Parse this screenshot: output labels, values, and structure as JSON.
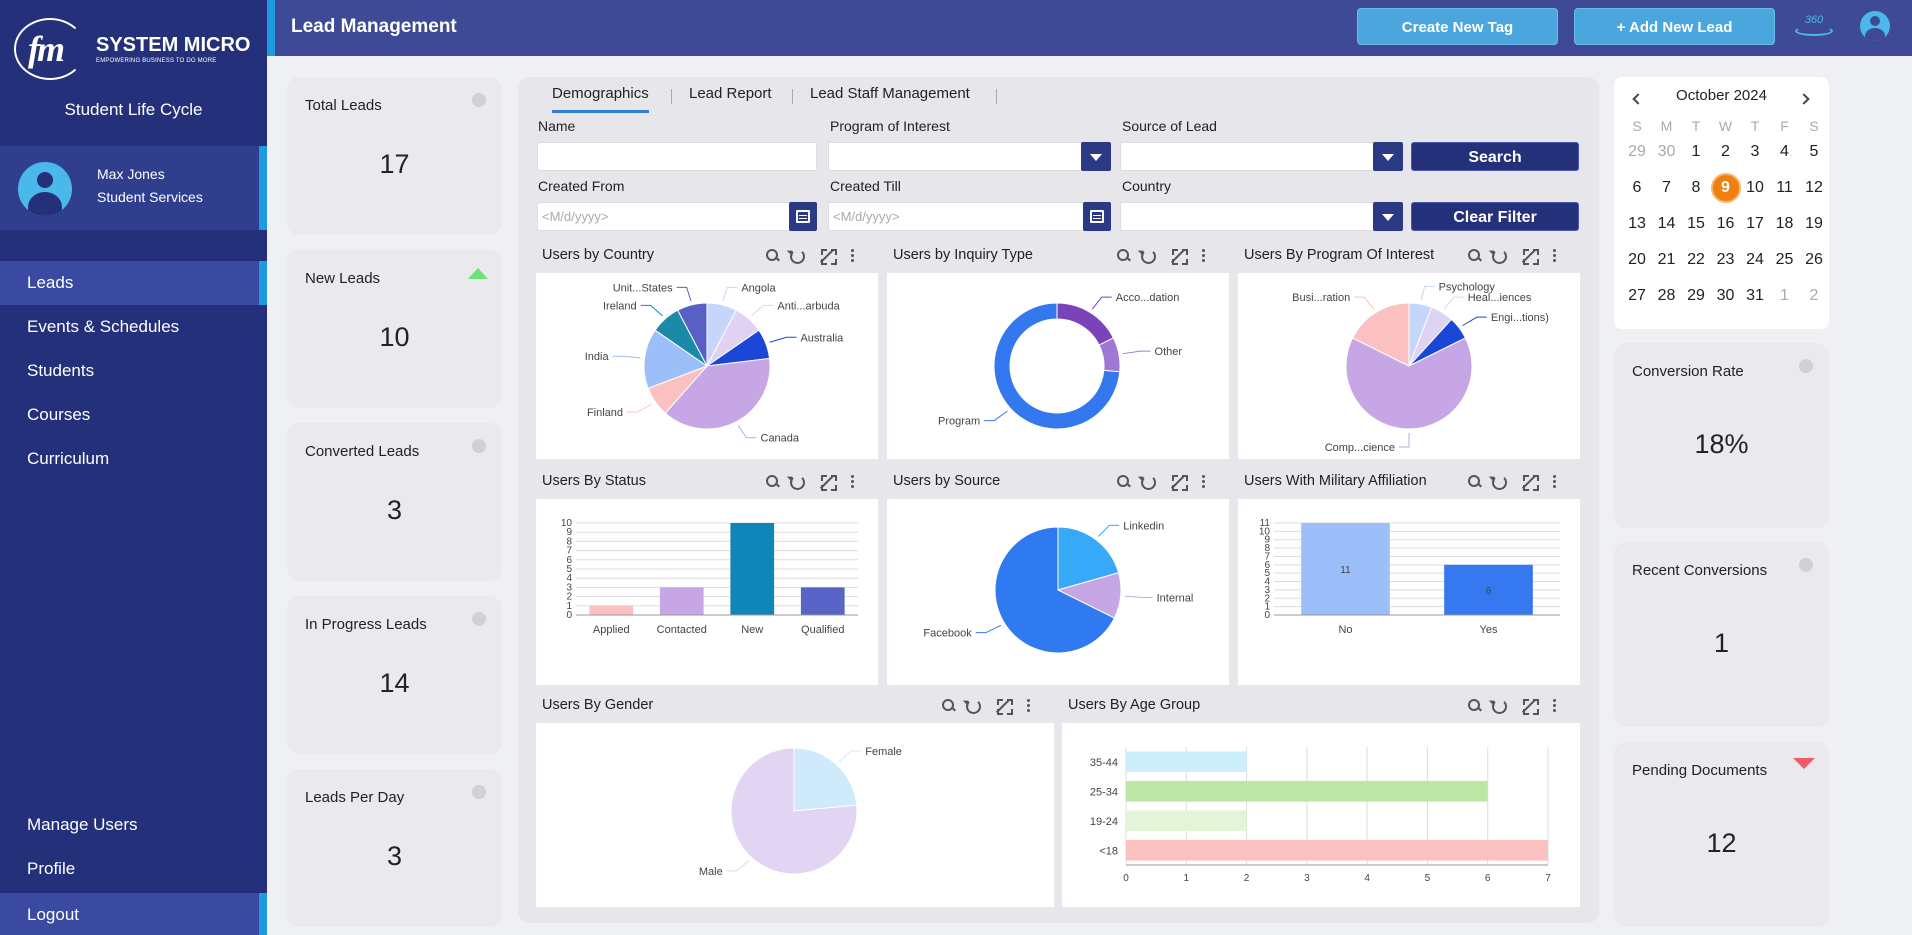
{
  "sidebar": {
    "logo": {
      "brand": "SYSTEM MICRO",
      "tagline": "EMPOWERING BUSINESS TO DO MORE",
      "mark": "fm"
    },
    "app_name": "Student Life Cycle",
    "user": {
      "name": "Max Jones",
      "role": "Student Services"
    },
    "nav": [
      "Leads",
      "Events & Schedules",
      "Students",
      "Courses",
      "Curriculum"
    ],
    "bottom_nav": [
      "Manage Users",
      "Profile"
    ],
    "logout": "Logout"
  },
  "header": {
    "title": "Lead Management",
    "create_tag": "Create New Tag",
    "add_lead": "+ Add New Lead",
    "badge_360": "360"
  },
  "stats": [
    {
      "label": "Total Leads",
      "value": "17"
    },
    {
      "label": "New Leads",
      "value": "10"
    },
    {
      "label": "Converted Leads",
      "value": "3"
    },
    {
      "label": "In Progress Leads",
      "value": "14"
    },
    {
      "label": "Leads Per Day",
      "value": "3"
    }
  ],
  "right_stats": [
    {
      "label": "Conversion Rate",
      "value": "18%"
    },
    {
      "label": "Recent Conversions",
      "value": "1"
    },
    {
      "label": "Pending Documents",
      "value": "12"
    }
  ],
  "tabs": [
    "Demographics",
    "Lead Report",
    "Lead Staff Management"
  ],
  "filters": {
    "name_label": "Name",
    "program_label": "Program of Interest",
    "source_label": "Source of Lead",
    "created_from_label": "Created From",
    "created_till_label": "Created Till",
    "country_label": "Country",
    "date_placeholder": "<M/d/yyyy>",
    "search": "Search",
    "clear": "Clear Filter"
  },
  "calendar": {
    "month": "October 2024",
    "weekdays": [
      "S",
      "M",
      "T",
      "W",
      "T",
      "F",
      "S"
    ],
    "days": [
      [
        "29",
        "30",
        "1",
        "2",
        "3",
        "4",
        "5"
      ],
      [
        "6",
        "7",
        "8",
        "9",
        "10",
        "11",
        "12"
      ],
      [
        "13",
        "14",
        "15",
        "16",
        "17",
        "18",
        "19"
      ],
      [
        "20",
        "21",
        "22",
        "23",
        "24",
        "25",
        "26"
      ],
      [
        "27",
        "28",
        "29",
        "30",
        "31",
        "1",
        "2"
      ]
    ],
    "selected": "9"
  },
  "chart_data": [
    {
      "title": "Users by Country",
      "type": "pie",
      "slices": [
        {
          "label": "Angola",
          "value": 1,
          "color": "#c6d6fb"
        },
        {
          "label": "Anti...arbuda",
          "value": 1,
          "color": "#dfd2f2"
        },
        {
          "label": "Australia",
          "value": 1,
          "color": "#1c46d6"
        },
        {
          "label": "Canada",
          "value": 5,
          "color": "#c6a6e4"
        },
        {
          "label": "Finland",
          "value": 1,
          "color": "#fbc1c0"
        },
        {
          "label": "India",
          "value": 2,
          "color": "#9dbff9"
        },
        {
          "label": "Ireland",
          "value": 1,
          "color": "#1b8aa6"
        },
        {
          "label": "Unit...States",
          "value": 1,
          "color": "#5860c6"
        }
      ]
    },
    {
      "title": "Users by Inquiry Type",
      "type": "donut",
      "slices": [
        {
          "label": "Acco...dation",
          "value": 3,
          "color": "#7a44b8"
        },
        {
          "label": "Other",
          "value": 1.5,
          "color": "#9f78d4"
        },
        {
          "label": "Program",
          "value": 12.5,
          "color": "#3478f0"
        }
      ]
    },
    {
      "title": "Users By Program Of Interest",
      "type": "pie",
      "slices": [
        {
          "label": "Psychology",
          "value": 1,
          "color": "#c6d6fb"
        },
        {
          "label": "Heal...iences",
          "value": 1,
          "color": "#dfd2f2"
        },
        {
          "label": "Engi...tions)",
          "value": 1,
          "color": "#1c46d6"
        },
        {
          "label": "Comp...cience",
          "value": 11,
          "color": "#c6a6e4"
        },
        {
          "label": "Busi...ration",
          "value": 3,
          "color": "#fbc1c0"
        }
      ]
    },
    {
      "title": "Users By Status",
      "type": "bar",
      "categories": [
        "Applied",
        "Contacted",
        "New",
        "Qualified"
      ],
      "values": [
        1,
        3,
        10,
        3
      ],
      "colors": [
        "#fbc1c0",
        "#c6a6e4",
        "#0e86b8",
        "#5865c6"
      ],
      "ylim": [
        0,
        10
      ],
      "yticks": [
        "0",
        "1",
        "2",
        "3",
        "4",
        "5",
        "6",
        "7",
        "8",
        "9",
        "10"
      ]
    },
    {
      "title": "Users by Source",
      "type": "pie",
      "slices": [
        {
          "label": "Linkedin",
          "value": 3.5,
          "color": "#38a8f8"
        },
        {
          "label": "Internal",
          "value": 2,
          "color": "#c6a6e4"
        },
        {
          "label": "Facebook",
          "value": 11.5,
          "color": "#2f7af0"
        }
      ]
    },
    {
      "title": "Users With Military Affiliation",
      "type": "bar",
      "categories": [
        "No",
        "Yes"
      ],
      "values": [
        11,
        6
      ],
      "labels": [
        "11",
        "6"
      ],
      "colors": [
        "#9cbff9",
        "#3578f0"
      ],
      "ylim": [
        0,
        11
      ],
      "yticks": [
        "0",
        "1",
        "2",
        "3",
        "4",
        "5",
        "6",
        "7",
        "8",
        "9",
        "10",
        "11"
      ]
    },
    {
      "title": "Users By Gender",
      "type": "pie",
      "slices": [
        {
          "label": "Female",
          "value": 4,
          "color": "#cfeafb"
        },
        {
          "label": "Male",
          "value": 13,
          "color": "#e2d4f3"
        }
      ]
    },
    {
      "title": "Users By Age Group",
      "type": "hbar",
      "categories": [
        "35-44",
        "25-34",
        "19-24",
        "<18"
      ],
      "values": [
        2,
        6,
        2,
        7
      ],
      "colors": [
        "#cdeffc",
        "#bde6a4",
        "#e4f4d8",
        "#fbc1c0"
      ],
      "xlim": [
        0,
        7
      ],
      "xticks": [
        "0",
        "1",
        "2",
        "3",
        "4",
        "5",
        "6",
        "7"
      ]
    }
  ]
}
